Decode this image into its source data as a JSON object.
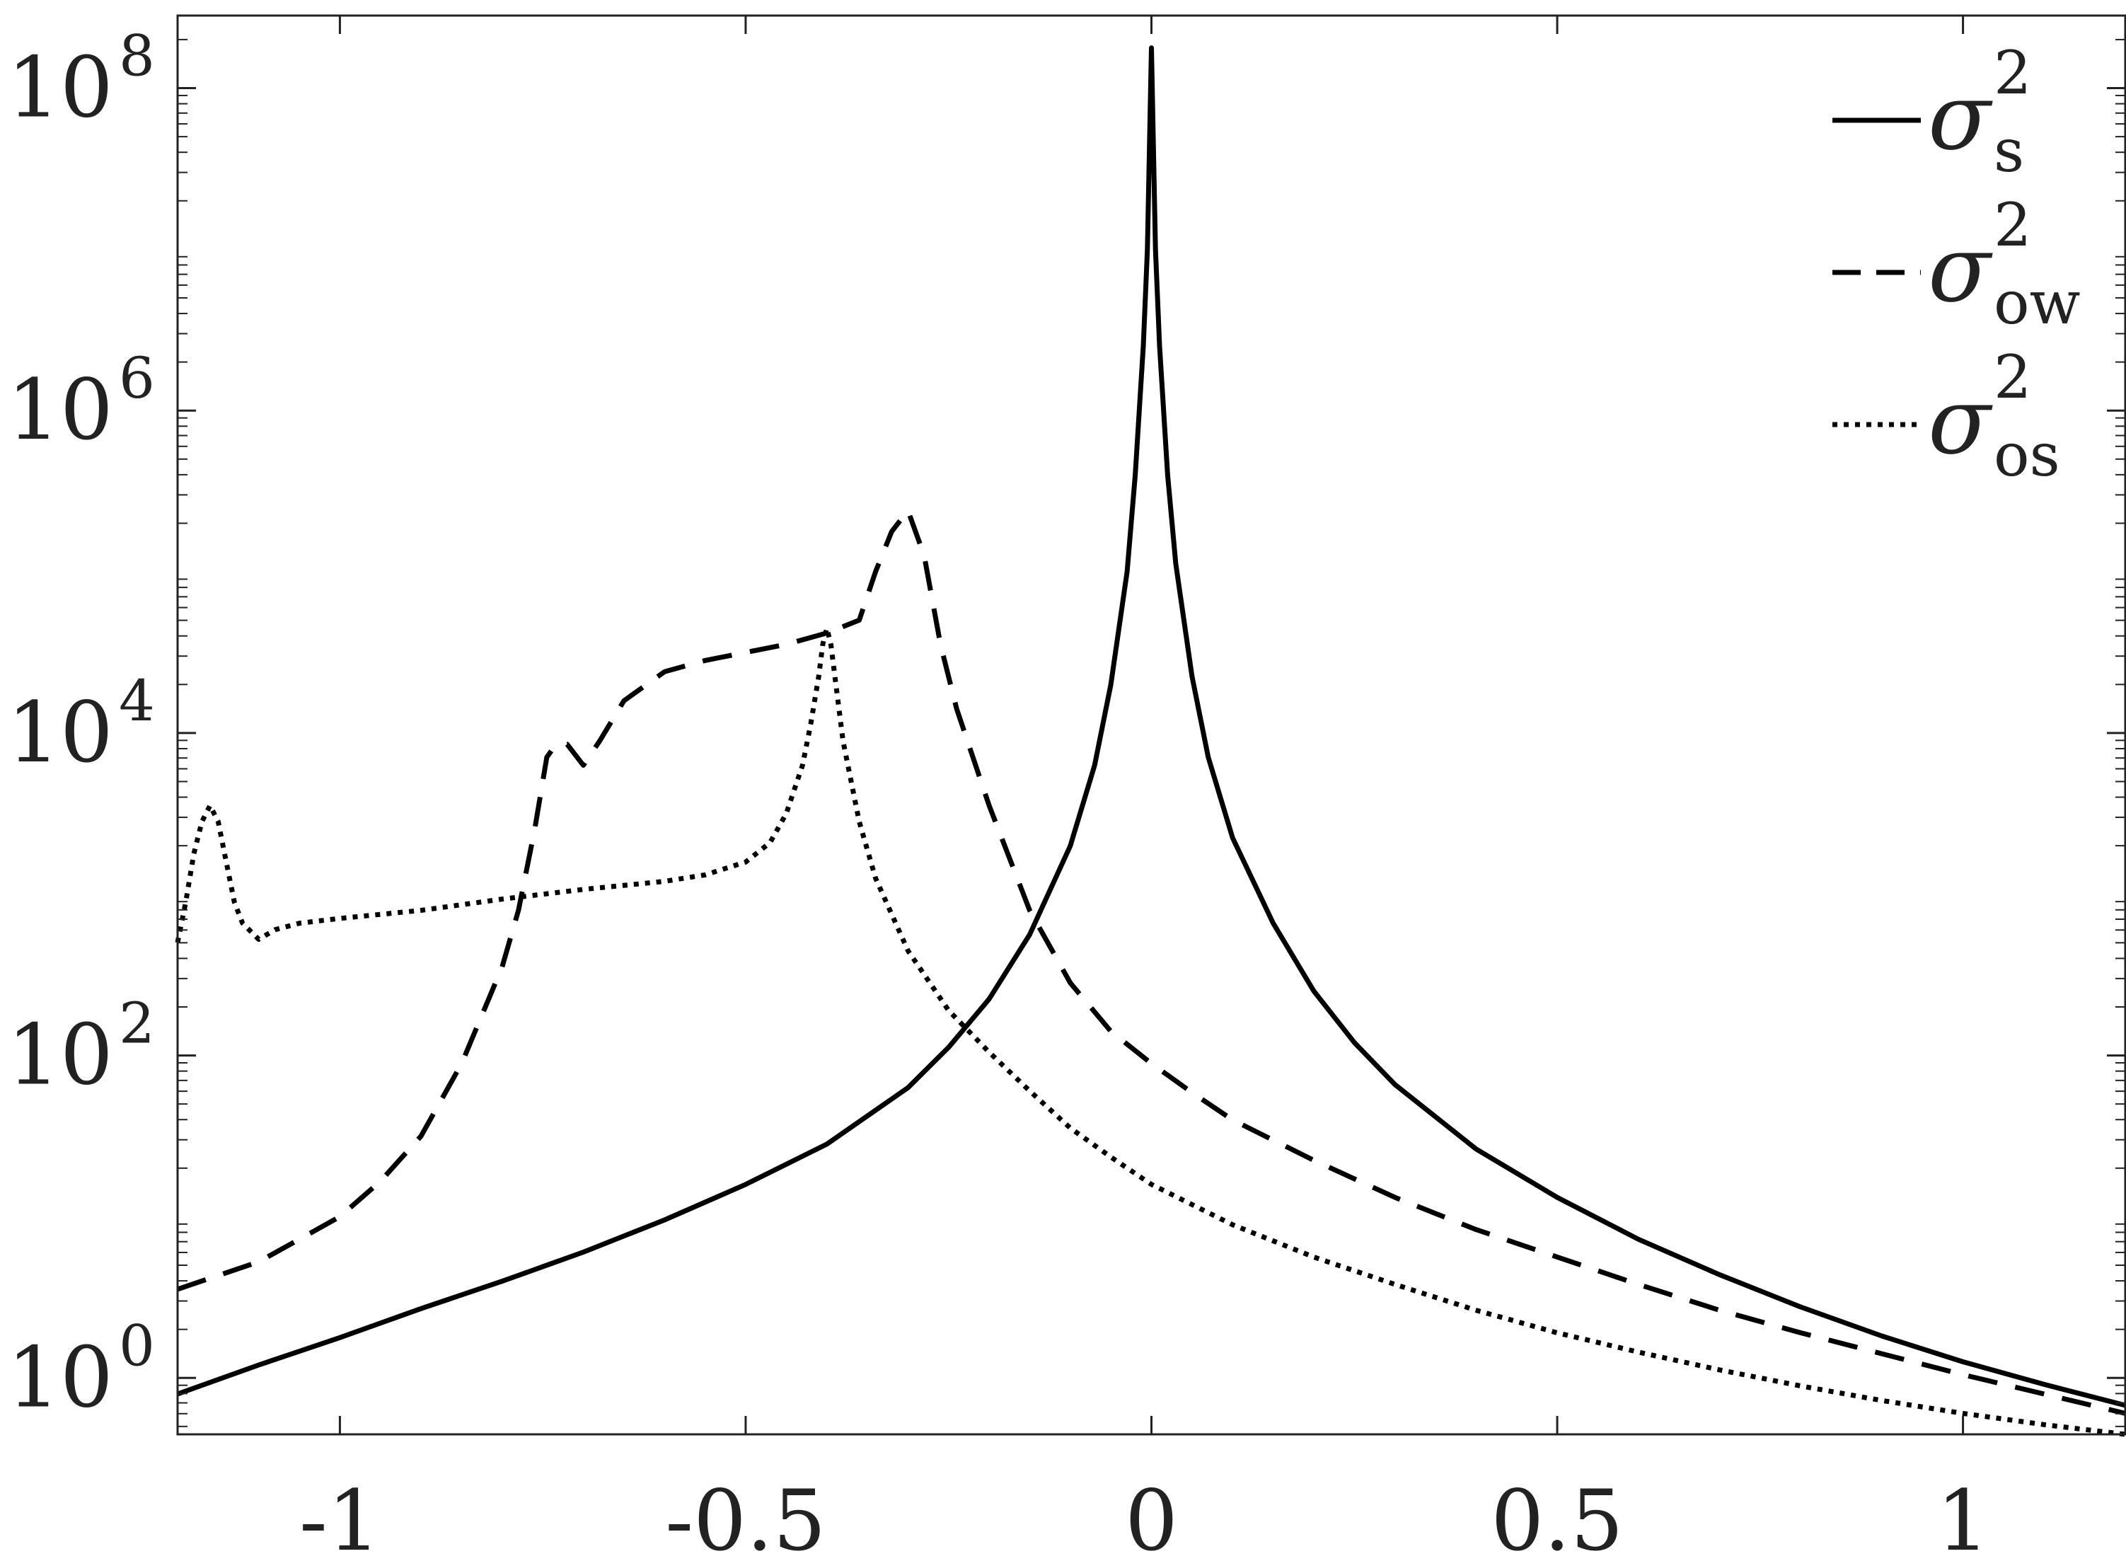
{
  "chart_data": {
    "type": "line",
    "title": "",
    "xlabel": "",
    "ylabel": "",
    "xlim": [
      -1.2,
      1.2
    ],
    "ylim_log10": [
      -0.35,
      8.45
    ],
    "yscale": "log",
    "grid": false,
    "legend_position": "top-right",
    "x_ticks": [
      {
        "value": -1,
        "label": "-1"
      },
      {
        "value": -0.5,
        "label": "-0.5"
      },
      {
        "value": 0,
        "label": "0"
      },
      {
        "value": 0.5,
        "label": "0.5"
      },
      {
        "value": 1,
        "label": "1"
      }
    ],
    "y_ticks": [
      {
        "log10": 0,
        "base": "10",
        "exp": "0"
      },
      {
        "log10": 2,
        "base": "10",
        "exp": "2"
      },
      {
        "log10": 4,
        "base": "10",
        "exp": "4"
      },
      {
        "log10": 6,
        "base": "10",
        "exp": "6"
      },
      {
        "log10": 8,
        "base": "10",
        "exp": "8"
      }
    ],
    "series": [
      {
        "key": "s",
        "legend_symbol": "σ",
        "legend_sup": "2",
        "legend_sub": "s",
        "style": "solid",
        "color": "#000000",
        "x": [
          -1.2,
          -1.1,
          -1.0,
          -0.9,
          -0.8,
          -0.7,
          -0.6,
          -0.5,
          -0.4,
          -0.3,
          -0.25,
          -0.2,
          -0.15,
          -0.1,
          -0.07,
          -0.05,
          -0.03,
          -0.02,
          -0.01,
          -0.005,
          0.0,
          0.005,
          0.01,
          0.02,
          0.03,
          0.05,
          0.07,
          0.1,
          0.15,
          0.2,
          0.25,
          0.3,
          0.4,
          0.5,
          0.6,
          0.7,
          0.8,
          0.9,
          1.0,
          1.1,
          1.2
        ],
        "log10_y": [
          -0.1,
          0.08,
          0.25,
          0.43,
          0.6,
          0.78,
          0.98,
          1.2,
          1.45,
          1.8,
          2.05,
          2.35,
          2.75,
          3.3,
          3.8,
          4.3,
          5.0,
          5.6,
          6.4,
          7.0,
          8.25,
          7.0,
          6.4,
          5.6,
          5.05,
          4.35,
          3.85,
          3.35,
          2.82,
          2.4,
          2.08,
          1.82,
          1.42,
          1.12,
          0.86,
          0.64,
          0.44,
          0.26,
          0.1,
          -0.04,
          -0.17
        ]
      },
      {
        "key": "ow",
        "legend_symbol": "σ",
        "legend_sup": "2",
        "legend_sub": "ow",
        "style": "dashed",
        "color": "#000000",
        "x": [
          -1.2,
          -1.1,
          -1.0,
          -0.95,
          -0.9,
          -0.85,
          -0.8,
          -0.78,
          -0.76,
          -0.745,
          -0.735,
          -0.72,
          -0.7,
          -0.68,
          -0.65,
          -0.6,
          -0.55,
          -0.5,
          -0.45,
          -0.4,
          -0.36,
          -0.34,
          -0.32,
          -0.3,
          -0.28,
          -0.26,
          -0.24,
          -0.2,
          -0.15,
          -0.1,
          -0.05,
          0.0,
          0.05,
          0.1,
          0.2,
          0.3,
          0.4,
          0.5,
          0.6,
          0.7,
          0.8,
          0.9,
          1.0,
          1.1,
          1.2
        ],
        "log10_y": [
          0.55,
          0.72,
          1.0,
          1.22,
          1.5,
          1.95,
          2.55,
          2.9,
          3.4,
          3.85,
          3.92,
          3.93,
          3.8,
          3.95,
          4.2,
          4.38,
          4.45,
          4.5,
          4.55,
          4.62,
          4.7,
          5.0,
          5.25,
          5.38,
          5.1,
          4.55,
          4.15,
          3.55,
          2.9,
          2.45,
          2.15,
          1.95,
          1.77,
          1.6,
          1.35,
          1.12,
          0.92,
          0.75,
          0.58,
          0.42,
          0.28,
          0.15,
          0.02,
          -0.1,
          -0.22
        ]
      },
      {
        "key": "os",
        "legend_symbol": "σ",
        "legend_sup": "2",
        "legend_sub": "os",
        "style": "dotted",
        "color": "#000000",
        "x": [
          -1.2,
          -1.19,
          -1.18,
          -1.17,
          -1.16,
          -1.15,
          -1.14,
          -1.13,
          -1.12,
          -1.1,
          -1.08,
          -1.05,
          -1.0,
          -0.9,
          -0.8,
          -0.7,
          -0.6,
          -0.55,
          -0.5,
          -0.47,
          -0.45,
          -0.43,
          -0.42,
          -0.41,
          -0.405,
          -0.4,
          -0.395,
          -0.39,
          -0.38,
          -0.36,
          -0.34,
          -0.3,
          -0.25,
          -0.2,
          -0.15,
          -0.1,
          -0.05,
          0.0,
          0.1,
          0.2,
          0.3,
          0.4,
          0.5,
          0.6,
          0.7,
          0.8,
          0.9,
          1.0,
          1.1,
          1.2
        ],
        "log10_y": [
          2.7,
          2.95,
          3.25,
          3.45,
          3.55,
          3.45,
          3.2,
          2.95,
          2.82,
          2.72,
          2.78,
          2.82,
          2.85,
          2.9,
          2.97,
          3.03,
          3.08,
          3.12,
          3.2,
          3.32,
          3.5,
          3.8,
          4.05,
          4.35,
          4.55,
          4.65,
          4.55,
          4.35,
          3.95,
          3.45,
          3.1,
          2.65,
          2.28,
          2.02,
          1.78,
          1.55,
          1.37,
          1.2,
          0.95,
          0.75,
          0.58,
          0.42,
          0.28,
          0.16,
          0.05,
          -0.05,
          -0.14,
          -0.22,
          -0.29,
          -0.35
        ]
      }
    ]
  }
}
